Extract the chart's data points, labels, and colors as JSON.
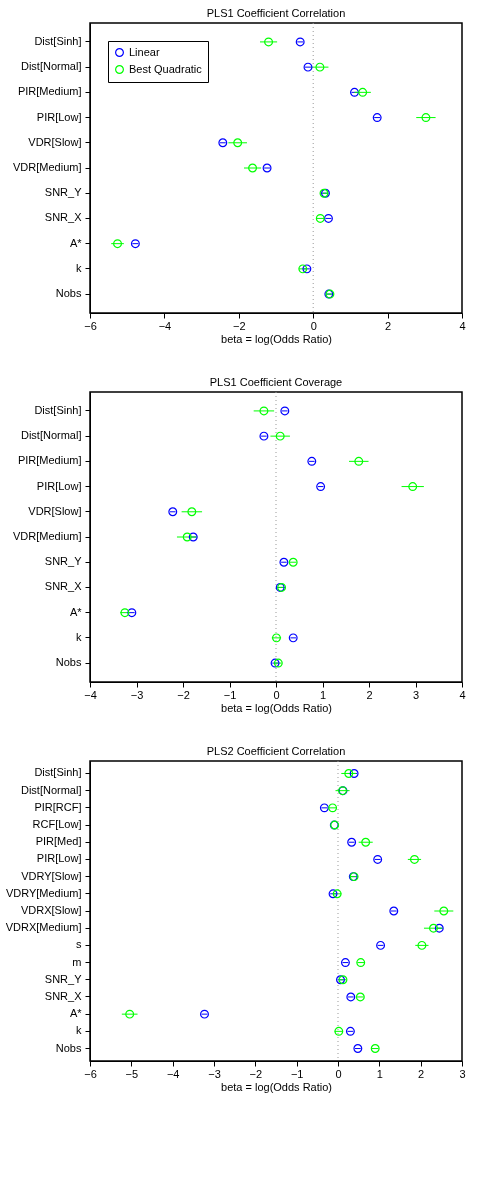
{
  "chart_data": [
    {
      "type": "scatter",
      "orientation": "horizontal",
      "marker": "circle",
      "legend": "top left",
      "title": "PLS1 Coefficient Correlation",
      "xlabel": "beta = log(Odds Ratio)",
      "xlim": [
        -6,
        4
      ],
      "xticks": [
        -6,
        -4,
        -2,
        0,
        2,
        4
      ],
      "categories": [
        "Dist[Sinh]",
        "Dist[Normal]",
        "PIR[Medium]",
        "PIR[Low]",
        "VDR[Slow]",
        "VDR[Medium]",
        "SNR_Y",
        "SNR_X",
        "A*",
        "k",
        "Nobs"
      ],
      "ref_lines": [
        {
          "axis": "x",
          "value": 0,
          "color": "#999999",
          "line_style": "dotted"
        }
      ],
      "series": [
        {
          "name": "Linear",
          "color": "#0000ff",
          "values": [
            -0.35,
            -0.14,
            1.11,
            1.72,
            -2.43,
            -1.24,
            0.33,
            0.41,
            -4.78,
            -0.17,
            0.42
          ],
          "errors": [
            0.08,
            0.08,
            0.08,
            0.08,
            0.08,
            0.08,
            0.08,
            0.08,
            0.08,
            0.08,
            0.08
          ]
        },
        {
          "name": "Best Quadratic",
          "color": "#00ff00",
          "values": [
            -1.2,
            0.18,
            1.33,
            3.03,
            -2.03,
            -1.63,
            0.29,
            0.19,
            -5.26,
            -0.28,
            0.45
          ],
          "errors": [
            0.23,
            0.23,
            0.22,
            0.26,
            0.25,
            0.23,
            0.1,
            0.1,
            0.17,
            0.1,
            0.1
          ]
        }
      ]
    },
    {
      "type": "scatter",
      "orientation": "horizontal",
      "marker": "circle",
      "legend": "top left",
      "title": "PLS1 Coefficient Coverage",
      "xlabel": "beta = log(Odds Ratio)",
      "xlim": [
        -4,
        4
      ],
      "xticks": [
        -4,
        -3,
        -2,
        -1,
        0,
        1,
        2,
        3,
        4
      ],
      "categories": [
        "Dist[Sinh]",
        "Dist[Normal]",
        "PIR[Medium]",
        "PIR[Low]",
        "VDR[Slow]",
        "VDR[Medium]",
        "SNR_Y",
        "SNR_X",
        "A*",
        "k",
        "Nobs"
      ],
      "ref_lines": [
        {
          "axis": "x",
          "value": 0,
          "color": "#999999",
          "line_style": "dotted"
        }
      ],
      "series": [
        {
          "name": "Linear",
          "color": "#0000ff",
          "values": [
            0.19,
            -0.26,
            0.77,
            0.96,
            -2.22,
            -1.78,
            0.17,
            0.09,
            -3.1,
            0.37,
            -0.02
          ],
          "errors": [
            0.06,
            0.06,
            0.06,
            0.06,
            0.06,
            0.06,
            0.06,
            0.06,
            0.06,
            0.06,
            0.06
          ]
        },
        {
          "name": "Best Quadratic",
          "color": "#00ff00",
          "values": [
            -0.26,
            0.09,
            1.78,
            2.94,
            -1.81,
            -1.91,
            0.37,
            0.12,
            -3.25,
            0.01,
            0.05
          ],
          "errors": [
            0.22,
            0.21,
            0.21,
            0.24,
            0.22,
            0.22,
            0.07,
            0.07,
            0.1,
            0.1,
            0.07
          ]
        }
      ]
    },
    {
      "type": "scatter",
      "orientation": "horizontal",
      "marker": "circle",
      "legend": "top left",
      "title": "PLS2 Coefficient Correlation",
      "xlabel": "beta = log(Odds Ratio)",
      "xlim": [
        -6,
        3
      ],
      "xticks": [
        -6,
        -5,
        -4,
        -3,
        -2,
        -1,
        0,
        1,
        2,
        3
      ],
      "categories": [
        "Dist[Sinh]",
        "Dist[Normal]",
        "PIR[RCF]",
        "RCF[Low]",
        "PIR[Med]",
        "PIR[Low]",
        "VDRY[Slow]",
        "VDRY[Medium]",
        "VDRX[Slow]",
        "VDRX[Medium]",
        "s",
        "m",
        "SNR_Y",
        "SNR_X",
        "A*",
        "k",
        "Nobs"
      ],
      "ref_lines": [
        {
          "axis": "x",
          "value": 0,
          "color": "#999999",
          "line_style": "dotted"
        }
      ],
      "series": [
        {
          "name": "Linear",
          "color": "#0000ff",
          "values": [
            0.39,
            0.12,
            -0.33,
            -0.09,
            0.33,
            0.96,
            0.37,
            -0.12,
            1.35,
            2.45,
            1.03,
            0.18,
            0.06,
            0.31,
            -3.23,
            0.3,
            0.48
          ],
          "errors": [
            0.07,
            null,
            0.07,
            null,
            0.07,
            0.07,
            0.07,
            0.07,
            0.07,
            0.07,
            0.07,
            0.07,
            0.07,
            0.07,
            0.07,
            0.07,
            0.07
          ]
        },
        {
          "name": "Best Quadratic",
          "color": "#00ff00",
          "values": [
            0.26,
            0.11,
            -0.13,
            -0.08,
            0.67,
            1.85,
            0.39,
            -0.02,
            2.56,
            2.31,
            2.03,
            0.55,
            0.12,
            0.54,
            -5.04,
            0.02,
            0.9
          ],
          "errors": [
            0.18,
            0.17,
            0.1,
            null,
            0.17,
            0.16,
            0.08,
            0.1,
            0.23,
            0.23,
            0.16,
            0.08,
            0.08,
            0.08,
            0.19,
            0.1,
            0.08
          ]
        }
      ]
    }
  ]
}
